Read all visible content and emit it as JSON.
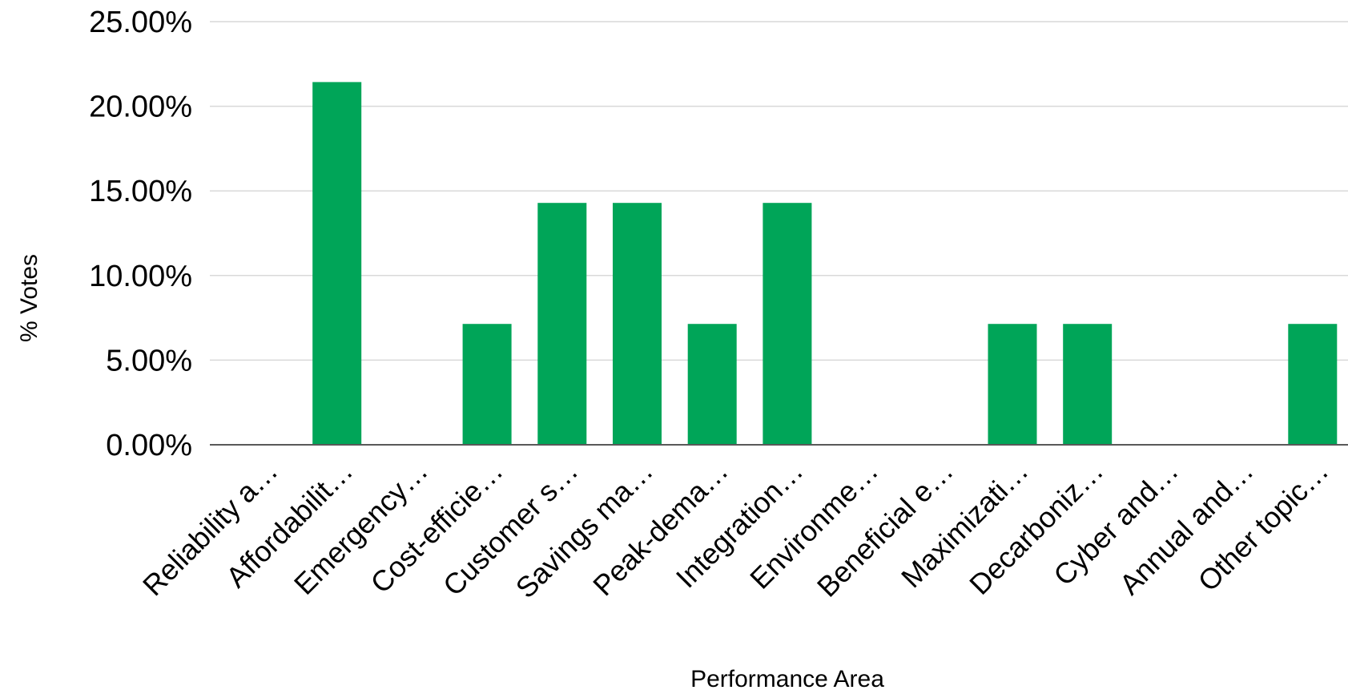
{
  "chart_data": {
    "type": "bar",
    "title": "",
    "xlabel": "Performance Area",
    "ylabel": "% Votes",
    "ylim": [
      0,
      25
    ],
    "yticks": [
      "0.00%",
      "5.00%",
      "10.00%",
      "15.00%",
      "20.00%",
      "25.00%"
    ],
    "grid": true,
    "legend": "none",
    "bar_color": "#00A558",
    "categories": [
      "Reliability a…",
      "Affordabilit…",
      "Emergency…",
      "Cost-efficie…",
      "Customer s…",
      "Savings ma…",
      "Peak-dema…",
      "Integration…",
      "Environme…",
      "Beneficial e…",
      "Maximizati…",
      "Decarboniz…",
      "Cyber and…",
      "Annual and…",
      "Other topic…"
    ],
    "values": [
      0,
      21.43,
      0,
      7.14,
      14.29,
      14.29,
      7.14,
      14.29,
      0,
      0,
      7.14,
      7.14,
      0,
      0,
      7.14
    ]
  }
}
